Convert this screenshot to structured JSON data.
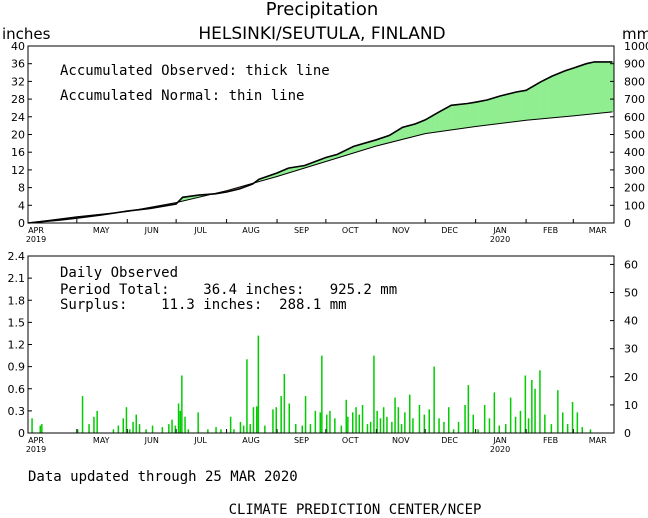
{
  "title": "Precipitation",
  "subtitle": "HELSINKI/SEUTULA, FINLAND",
  "footer_updated": "Data updated through 25 MAR 2020",
  "footer_credit": "CLIMATE PREDICTION CENTER/NCEP",
  "colors": {
    "surplus": "#90ee90",
    "deficit": "#b08878",
    "bars": "#00cc00",
    "line": "#000000"
  },
  "chart_data": [
    {
      "type": "area",
      "name": "accumulated",
      "left_unit": "inches",
      "right_unit": "mm",
      "ylim": [
        0,
        40
      ],
      "ylim_right": [
        0,
        1000
      ],
      "yticks": [
        "0",
        "4",
        "8",
        "12",
        "16",
        "20",
        "24",
        "28",
        "32",
        "36",
        "40"
      ],
      "yticks_right": [
        "0",
        "100",
        "200",
        "300",
        "400",
        "500",
        "600",
        "700",
        "800",
        "900",
        "1000"
      ],
      "x_labels": [
        {
          "day": 0,
          "label": "APR",
          "year": "2019"
        },
        {
          "day": 30,
          "label": "MAY",
          "year": ""
        },
        {
          "day": 61,
          "label": "JUN",
          "year": ""
        },
        {
          "day": 91,
          "label": "JUL",
          "year": ""
        },
        {
          "day": 122,
          "label": "AUG",
          "year": ""
        },
        {
          "day": 153,
          "label": "SEP",
          "year": ""
        },
        {
          "day": 183,
          "label": "OCT",
          "year": ""
        },
        {
          "day": 214,
          "label": "NOV",
          "year": ""
        },
        {
          "day": 244,
          "label": "DEC",
          "year": ""
        },
        {
          "day": 275,
          "label": "JAN",
          "year": "2020"
        },
        {
          "day": 306,
          "label": "FEB",
          "year": ""
        },
        {
          "day": 335,
          "label": "MAR",
          "year": ""
        }
      ],
      "x_days_total": 360,
      "annotations": [
        "Accumulated Observed: thick line",
        "Accumulated Normal: thin line"
      ],
      "observed": [
        [
          0,
          0
        ],
        [
          8,
          0.3
        ],
        [
          20,
          0.7
        ],
        [
          30,
          1.1
        ],
        [
          45,
          1.8
        ],
        [
          61,
          2.7
        ],
        [
          75,
          3.3
        ],
        [
          91,
          4.3
        ],
        [
          95,
          5.8
        ],
        [
          105,
          6.3
        ],
        [
          115,
          6.6
        ],
        [
          122,
          7.0
        ],
        [
          130,
          7.7
        ],
        [
          138,
          8.8
        ],
        [
          142,
          9.9
        ],
        [
          153,
          11.3
        ],
        [
          160,
          12.4
        ],
        [
          170,
          13.0
        ],
        [
          183,
          14.8
        ],
        [
          190,
          15.5
        ],
        [
          200,
          17.3
        ],
        [
          214,
          18.8
        ],
        [
          222,
          19.8
        ],
        [
          230,
          21.6
        ],
        [
          238,
          22.4
        ],
        [
          244,
          23.3
        ],
        [
          252,
          25.0
        ],
        [
          260,
          26.6
        ],
        [
          270,
          27.0
        ],
        [
          275,
          27.3
        ],
        [
          282,
          27.8
        ],
        [
          290,
          28.7
        ],
        [
          300,
          29.6
        ],
        [
          306,
          30.0
        ],
        [
          315,
          31.9
        ],
        [
          322,
          33.2
        ],
        [
          330,
          34.4
        ],
        [
          335,
          35.0
        ],
        [
          343,
          36.0
        ],
        [
          348,
          36.4
        ],
        [
          359,
          36.4
        ]
      ],
      "normal": [
        [
          0,
          0
        ],
        [
          30,
          1.4
        ],
        [
          61,
          2.6
        ],
        [
          91,
          4.6
        ],
        [
          122,
          7.3
        ],
        [
          153,
          10.5
        ],
        [
          183,
          13.9
        ],
        [
          214,
          17.4
        ],
        [
          244,
          20.2
        ],
        [
          275,
          21.8
        ],
        [
          306,
          23.2
        ],
        [
          335,
          24.2
        ],
        [
          359,
          25.1
        ]
      ]
    },
    {
      "type": "bar",
      "name": "daily",
      "ylim": [
        0,
        2.4
      ],
      "ylim_right": [
        0,
        63
      ],
      "yticks": [
        "0",
        "0.3",
        "0.6",
        "0.9",
        "1.2",
        "1.5",
        "1.8",
        "2.1",
        "2.4"
      ],
      "yticks_right": [
        "0",
        "10",
        "20",
        "30",
        "40",
        "50",
        "60"
      ],
      "annotation_title": "Daily Observed",
      "period_total": "Period Total:    36.4 inches:   925.2 mm",
      "surplus": "Surplus:    11.3 inches:  288.1 mm",
      "values": [
        [
          2,
          0.2
        ],
        [
          7,
          0.1
        ],
        [
          8,
          0.12
        ],
        [
          30,
          0.05
        ],
        [
          33,
          0.5
        ],
        [
          37,
          0.12
        ],
        [
          40,
          0.22
        ],
        [
          42,
          0.3
        ],
        [
          52,
          0.05
        ],
        [
          55,
          0.1
        ],
        [
          58,
          0.2
        ],
        [
          60,
          0.35
        ],
        [
          62,
          0.05
        ],
        [
          64,
          0.15
        ],
        [
          66,
          0.25
        ],
        [
          68,
          0.12
        ],
        [
          72,
          0.05
        ],
        [
          76,
          0.1
        ],
        [
          82,
          0.08
        ],
        [
          86,
          0.12
        ],
        [
          88,
          0.18
        ],
        [
          90,
          0.1
        ],
        [
          92,
          0.4
        ],
        [
          93,
          0.3
        ],
        [
          94,
          0.78
        ],
        [
          96,
          0.22
        ],
        [
          98,
          0.05
        ],
        [
          104,
          0.28
        ],
        [
          110,
          0.05
        ],
        [
          115,
          0.08
        ],
        [
          118,
          0.05
        ],
        [
          124,
          0.22
        ],
        [
          126,
          0.05
        ],
        [
          130,
          0.15
        ],
        [
          132,
          0.1
        ],
        [
          134,
          1.0
        ],
        [
          136,
          0.12
        ],
        [
          138,
          0.35
        ],
        [
          140,
          0.36
        ],
        [
          141,
          1.32
        ],
        [
          145,
          0.1
        ],
        [
          150,
          0.32
        ],
        [
          152,
          0.35
        ],
        [
          155,
          0.5
        ],
        [
          157,
          0.8
        ],
        [
          160,
          0.4
        ],
        [
          164,
          0.12
        ],
        [
          168,
          0.1
        ],
        [
          170,
          0.5
        ],
        [
          173,
          0.12
        ],
        [
          176,
          0.3
        ],
        [
          179,
          0.28
        ],
        [
          180,
          1.05
        ],
        [
          183,
          0.25
        ],
        [
          185,
          0.3
        ],
        [
          188,
          0.2
        ],
        [
          192,
          0.1
        ],
        [
          195,
          0.45
        ],
        [
          196,
          0.22
        ],
        [
          199,
          0.28
        ],
        [
          201,
          0.35
        ],
        [
          203,
          0.25
        ],
        [
          205,
          0.38
        ],
        [
          208,
          0.12
        ],
        [
          210,
          0.15
        ],
        [
          212,
          1.05
        ],
        [
          214,
          0.3
        ],
        [
          216,
          0.2
        ],
        [
          218,
          0.35
        ],
        [
          220,
          0.22
        ],
        [
          223,
          0.15
        ],
        [
          225,
          0.48
        ],
        [
          227,
          0.35
        ],
        [
          229,
          0.12
        ],
        [
          231,
          0.28
        ],
        [
          234,
          0.52
        ],
        [
          236,
          0.2
        ],
        [
          240,
          0.38
        ],
        [
          243,
          0.25
        ],
        [
          246,
          0.32
        ],
        [
          249,
          0.9
        ],
        [
          252,
          0.2
        ],
        [
          255,
          0.15
        ],
        [
          258,
          0.35
        ],
        [
          261,
          0.05
        ],
        [
          264,
          0.15
        ],
        [
          268,
          0.38
        ],
        [
          270,
          0.65
        ],
        [
          273,
          0.25
        ],
        [
          276,
          0.05
        ],
        [
          280,
          0.38
        ],
        [
          283,
          0.2
        ],
        [
          286,
          0.55
        ],
        [
          289,
          0.1
        ],
        [
          293,
          0.12
        ],
        [
          296,
          0.48
        ],
        [
          299,
          0.22
        ],
        [
          302,
          0.3
        ],
        [
          305,
          0.78
        ],
        [
          307,
          0.2
        ],
        [
          309,
          0.72
        ],
        [
          311,
          0.6
        ],
        [
          314,
          0.85
        ],
        [
          317,
          0.25
        ],
        [
          321,
          0.12
        ],
        [
          325,
          0.58
        ],
        [
          328,
          0.28
        ],
        [
          331,
          0.12
        ],
        [
          334,
          0.42
        ],
        [
          337,
          0.28
        ],
        [
          340,
          0.08
        ],
        [
          345,
          0.05
        ]
      ]
    }
  ]
}
